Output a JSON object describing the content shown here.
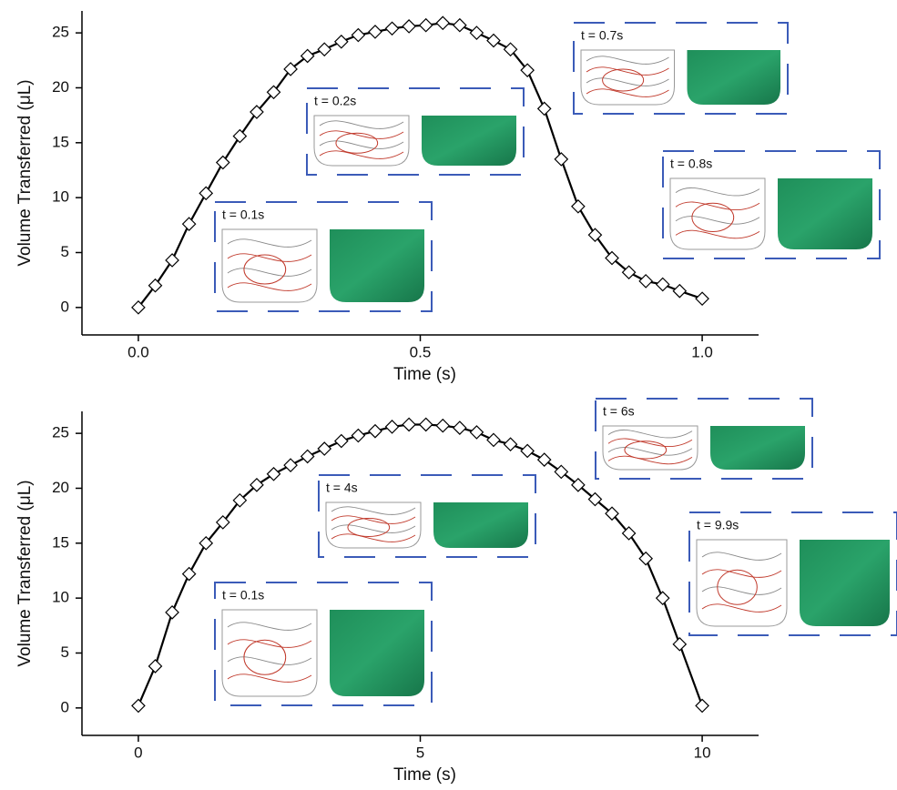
{
  "chart_data": [
    {
      "type": "line",
      "x_label": "Time (s)",
      "y_label": "Volume Transferred (μL)",
      "xlim": [
        -0.1,
        1.1
      ],
      "ylim": [
        -2.5,
        27
      ],
      "xticks": [
        {
          "value": 0,
          "label": "0.0"
        },
        0.5,
        {
          "value": 1,
          "label": "1.0"
        }
      ],
      "yticks": [
        0,
        5,
        10,
        15,
        20,
        25
      ],
      "color": "#000000",
      "marker": "diamond",
      "x": [
        0,
        0.03,
        0.06,
        0.09,
        0.12,
        0.15,
        0.18,
        0.21,
        0.24,
        0.27,
        0.3,
        0.33,
        0.36,
        0.39,
        0.42,
        0.45,
        0.48,
        0.51,
        0.54,
        0.57,
        0.6,
        0.63,
        0.66,
        0.69,
        0.72,
        0.75,
        0.78,
        0.81,
        0.84,
        0.87,
        0.9,
        0.93,
        0.96,
        1.0
      ],
      "values": [
        0,
        2,
        4.3,
        7.6,
        10.4,
        13.2,
        15.6,
        17.8,
        19.6,
        21.7,
        22.9,
        23.5,
        24.2,
        24.8,
        25.1,
        25.4,
        25.6,
        25.7,
        25.9,
        25.7,
        25,
        24.3,
        23.5,
        21.6,
        18.1,
        13.5,
        9.2,
        6.6,
        4.5,
        3.2,
        2.4,
        2.1,
        1.5,
        0.8
      ],
      "annotations": [
        "t = 0.1s",
        "t = 0.2s",
        "t = 0.7s",
        "t = 0.8s"
      ]
    },
    {
      "type": "line",
      "x_label": "Time (s)",
      "y_label": "Volume Transferred (μL)",
      "xlim": [
        -1,
        11
      ],
      "ylim": [
        -2.5,
        27
      ],
      "xticks": [
        0,
        5,
        10
      ],
      "yticks": [
        0,
        5,
        10,
        15,
        20,
        25
      ],
      "color": "#000000",
      "marker": "diamond",
      "x": [
        0,
        0.3,
        0.6,
        0.9,
        1.2,
        1.5,
        1.8,
        2.1,
        2.4,
        2.7,
        3,
        3.3,
        3.6,
        3.9,
        4.2,
        4.5,
        4.8,
        5.1,
        5.4,
        5.7,
        6,
        6.3,
        6.6,
        6.9,
        7.2,
        7.5,
        7.8,
        8.1,
        8.4,
        8.7,
        9,
        9.3,
        9.6,
        10
      ],
      "values": [
        0.2,
        3.8,
        8.7,
        12.2,
        15,
        16.9,
        18.9,
        20.3,
        21.3,
        22.1,
        22.9,
        23.6,
        24.3,
        24.8,
        25.2,
        25.6,
        25.8,
        25.8,
        25.7,
        25.5,
        25.1,
        24.4,
        24,
        23.4,
        22.6,
        21.5,
        20.3,
        19,
        17.7,
        15.9,
        13.6,
        10,
        5.8,
        0.2
      ],
      "annotations": [
        "t = 0.1s",
        "t = 4s",
        "t = 6s",
        "t = 9.9s"
      ]
    }
  ]
}
